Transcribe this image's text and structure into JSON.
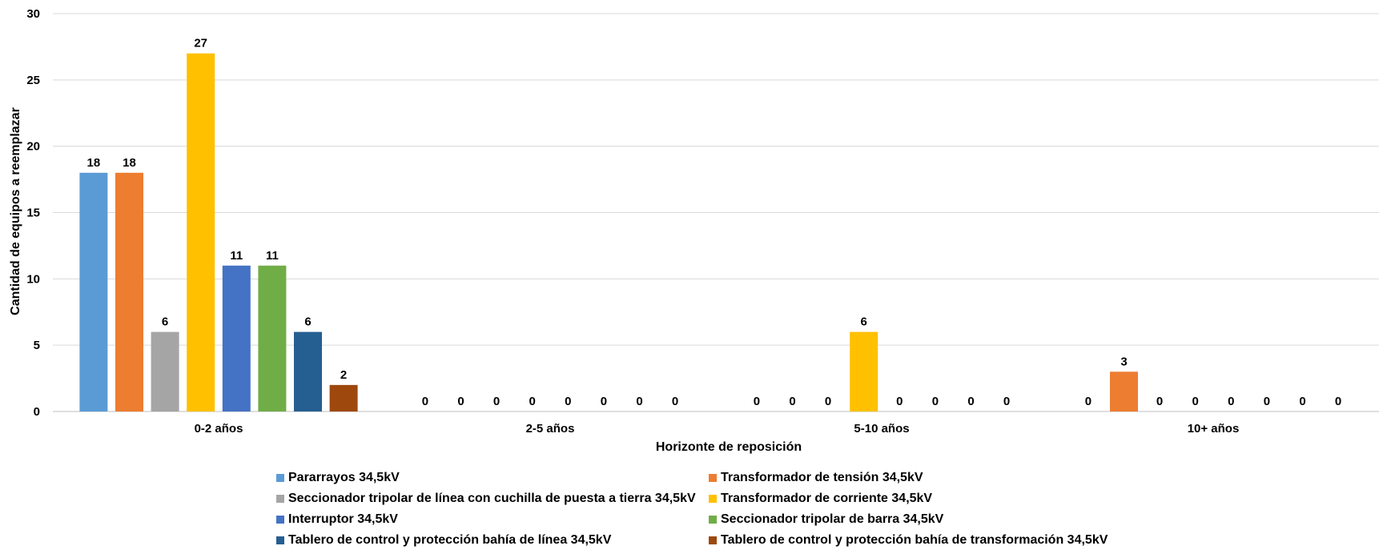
{
  "chart_data": {
    "type": "bar",
    "categories": [
      "0-2 años",
      "2-5 años",
      "5-10 años",
      "10+ años"
    ],
    "series": [
      {
        "name": "Pararrayos 34,5kV",
        "color": "#5B9BD5",
        "values": [
          18,
          0,
          0,
          0
        ]
      },
      {
        "name": "Transformador de tensión 34,5kV",
        "color": "#ED7D31",
        "values": [
          18,
          0,
          0,
          3
        ]
      },
      {
        "name": "Seccionador tripolar de línea con cuchilla de puesta a tierra 34,5kV",
        "color": "#A5A5A5",
        "values": [
          6,
          0,
          0,
          0
        ]
      },
      {
        "name": "Transformador de corriente 34,5kV",
        "color": "#FFC000",
        "values": [
          27,
          0,
          6,
          0
        ]
      },
      {
        "name": "Interruptor 34,5kV",
        "color": "#4472C4",
        "values": [
          11,
          0,
          0,
          0
        ]
      },
      {
        "name": "Seccionador tripolar de barra 34,5kV",
        "color": "#70AD47",
        "values": [
          11,
          0,
          0,
          0
        ]
      },
      {
        "name": "Tablero de control y protección bahía de línea 34,5kV",
        "color": "#255E91",
        "values": [
          6,
          0,
          0,
          0
        ]
      },
      {
        "name": "Tablero de control y protección bahía de transformación 34,5kV",
        "color": "#9E480E",
        "values": [
          2,
          0,
          0,
          0
        ]
      }
    ],
    "xlabel": "Horizonte de reposición",
    "ylabel": "Cantidad de equipos a reemplazar",
    "ylim": [
      0,
      30
    ],
    "yticks": [
      0,
      5,
      10,
      15,
      20,
      25,
      30
    ],
    "grid": true,
    "legend_position": "bottom"
  }
}
